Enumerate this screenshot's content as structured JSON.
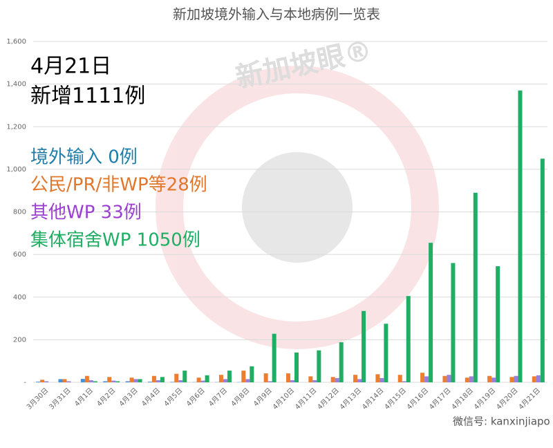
{
  "chart_data": {
    "type": "bar",
    "title": "新加坡境外输入与本地病例一览表",
    "annotations": [
      "4月21日",
      "新增1111例"
    ],
    "watermark": "新加坡眼®",
    "source": "微信号: kanxinjiapo",
    "categories": [
      "3月30日",
      "3月31日",
      "4月1日",
      "4月2日",
      "4月3日",
      "4月4日",
      "4月5日",
      "4月6日",
      "4月7日",
      "4月8日",
      "4月9日",
      "4月10日",
      "4月11日",
      "4月12日",
      "4月13日",
      "4月14日",
      "4月15日",
      "4月16日",
      "4月17日",
      "4月18日",
      "4月19日",
      "4月20日",
      "4月21日"
    ],
    "series": [
      {
        "name": "境外输入 0例",
        "color": "#4a90d9",
        "label_color": "#1f7fa8",
        "values": [
          3,
          15,
          16,
          5,
          5,
          3,
          2,
          1,
          1,
          1,
          0,
          0,
          0,
          0,
          0,
          0,
          0,
          0,
          0,
          0,
          0,
          0,
          0
        ]
      },
      {
        "name": "公民/PR/非WP等28例",
        "color": "#ed7d31",
        "label_color": "#e0772a",
        "values": [
          12,
          15,
          30,
          25,
          22,
          30,
          40,
          22,
          35,
          55,
          42,
          42,
          28,
          25,
          35,
          38,
          35,
          45,
          30,
          22,
          30,
          25,
          28
        ]
      },
      {
        "name": "其他WP 33例",
        "color": "#9a7fdc",
        "label_color": "#9b3fd0",
        "values": [
          5,
          5,
          10,
          8,
          15,
          10,
          10,
          8,
          15,
          15,
          5,
          10,
          10,
          20,
          15,
          20,
          5,
          28,
          35,
          28,
          22,
          30,
          33
        ]
      },
      {
        "name": "集体宿舍WP 1050例",
        "color": "#1fae63",
        "label_color": "#1fae63",
        "values": [
          0,
          0,
          5,
          5,
          15,
          25,
          55,
          33,
          55,
          75,
          228,
          140,
          150,
          188,
          335,
          275,
          405,
          655,
          560,
          890,
          545,
          1370,
          1050
        ]
      }
    ],
    "ylim": [
      0,
      1600
    ],
    "yticks": [
      {
        "value": 0,
        "label": "-"
      },
      {
        "value": 200,
        "label": "200"
      },
      {
        "value": 400,
        "label": "400"
      },
      {
        "value": 600,
        "label": "600"
      },
      {
        "value": 800,
        "label": "800"
      },
      {
        "value": 1000,
        "label": "1,000"
      },
      {
        "value": 1200,
        "label": "1,200"
      },
      {
        "value": 1400,
        "label": "1,400"
      },
      {
        "value": 1600,
        "label": "1,600"
      }
    ],
    "grid": true
  }
}
